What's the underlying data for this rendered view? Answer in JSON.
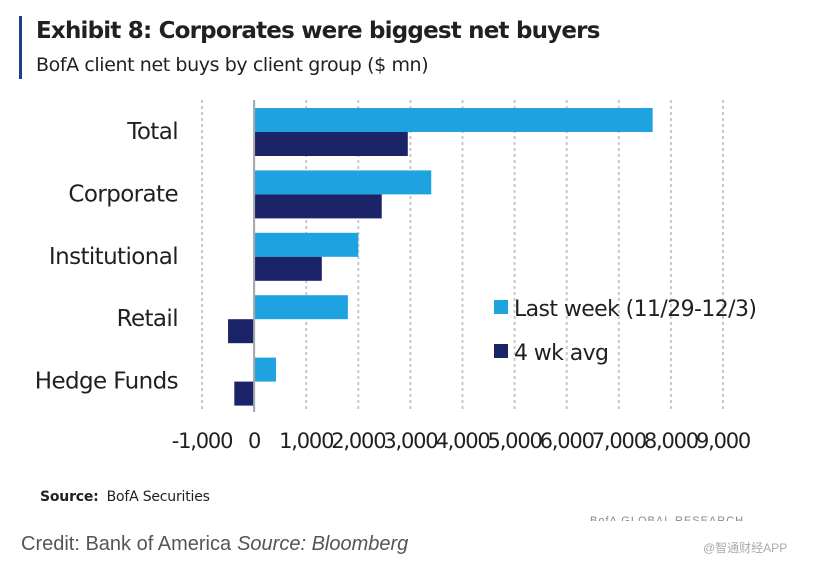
{
  "header": {
    "title": "Exhibit 8: Corporates were biggest net buyers",
    "subtitle": "BofA client net buys by client group ($ mn)"
  },
  "footer": {
    "source_label": "Source:",
    "source_value": "BofA Securities",
    "faded_text": "BofA GLOBAL RESEARCH",
    "credit": "Credit: Bank of America",
    "credit_source": "Source: Bloomberg",
    "watermark": "@智通财经APP"
  },
  "colors": {
    "last_week": "#1fa3e0",
    "avg": "#1b2369",
    "axis": "#c7c8ca",
    "accent_bar": "#1f3e8b"
  },
  "chart_data": {
    "type": "bar",
    "orientation": "horizontal",
    "title": "Exhibit 8: Corporates were biggest net buyers",
    "subtitle": "BofA client net buys by client group ($ mn)",
    "categories": [
      "Total",
      "Corporate",
      "Institutional",
      "Retail",
      "Hedge Funds"
    ],
    "series": [
      {
        "name": "Last week (11/29-12/3)",
        "values": [
          7650,
          3400,
          2000,
          1800,
          420
        ]
      },
      {
        "name": "4 wk avg",
        "values": [
          2950,
          2450,
          1300,
          -500,
          -380
        ]
      }
    ],
    "xlim": [
      -1000,
      9000
    ],
    "xticks": [
      -1000,
      0,
      1000,
      2000,
      3000,
      4000,
      5000,
      6000,
      7000,
      8000,
      9000
    ],
    "xtick_labels": [
      "-1,000",
      "0",
      "1,000",
      "2,000",
      "3,000",
      "4,000",
      "5,000",
      "6,000",
      "7,000",
      "8,000",
      "9,000"
    ],
    "grid": true,
    "legend_position": "right"
  }
}
